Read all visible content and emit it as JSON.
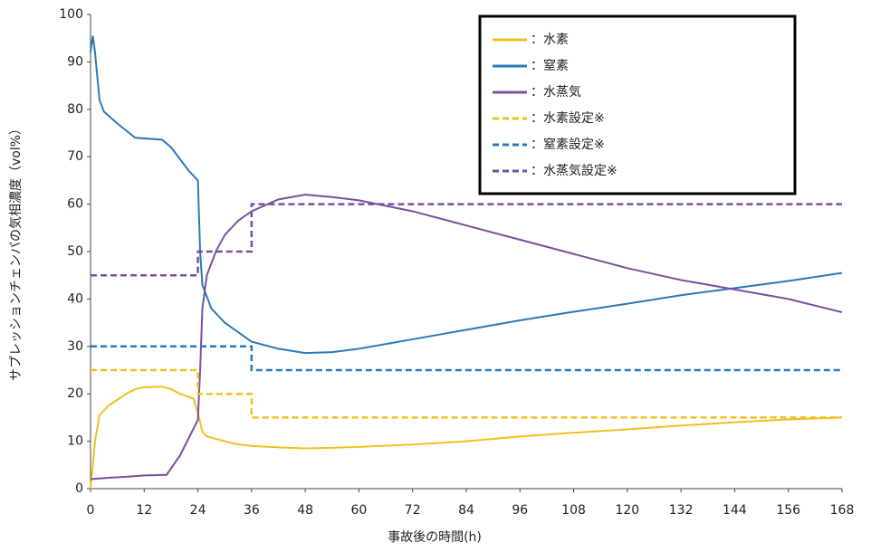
{
  "chart_data": {
    "type": "line",
    "xlabel": "事故後の時間(h)",
    "ylabel": "サプレッションチェンバの気相濃度（vol%）",
    "xlim": [
      0,
      168
    ],
    "xticks": [
      0,
      12,
      24,
      36,
      48,
      60,
      72,
      84,
      96,
      108,
      120,
      132,
      144,
      156,
      168
    ],
    "ylim": [
      0,
      100
    ],
    "yticks": [
      0,
      10,
      20,
      30,
      40,
      50,
      60,
      70,
      80,
      90,
      100
    ],
    "grid": false,
    "legend": "upper right",
    "series": [
      {
        "name": "：水素",
        "color": "#f0c020",
        "dash": false,
        "x": [
          0,
          1,
          2,
          4,
          8,
          10,
          12,
          16,
          18,
          20,
          23,
          24,
          25,
          26,
          28,
          32,
          36,
          42,
          48,
          54,
          60,
          72,
          84,
          96,
          108,
          120,
          132,
          144,
          156,
          168
        ],
        "values": [
          0,
          10,
          15.5,
          17.5,
          20,
          21,
          21.4,
          21.5,
          21,
          20,
          19,
          16,
          12,
          11,
          10.5,
          9.5,
          9,
          8.7,
          8.5,
          8.6,
          8.8,
          9.3,
          10,
          11,
          11.8,
          12.5,
          13.3,
          14,
          14.6,
          15
        ]
      },
      {
        "name": "：窒素",
        "color": "#2a7ab8",
        "dash": false,
        "x": [
          0,
          0.5,
          1,
          2,
          3,
          6,
          10,
          16,
          18,
          22,
          24,
          24.5,
          25,
          27,
          30,
          36,
          42,
          48,
          54,
          60,
          72,
          84,
          96,
          108,
          120,
          132,
          144,
          156,
          168
        ],
        "values": [
          92,
          95.5,
          92,
          82,
          79.5,
          77,
          74,
          73.6,
          72,
          67,
          65,
          50,
          43,
          38,
          35,
          31,
          29.5,
          28.6,
          28.8,
          29.5,
          31.5,
          33.5,
          35.5,
          37.3,
          39,
          40.8,
          42.3,
          43.8,
          45.5
        ]
      },
      {
        "name": "：水蒸気",
        "color": "#7a4fa0",
        "dash": false,
        "x": [
          0,
          4,
          8,
          12,
          17,
          20,
          24,
          24.5,
          25,
          26,
          28,
          30,
          33,
          36,
          42,
          48,
          54,
          60,
          72,
          84,
          96,
          108,
          120,
          132,
          144,
          156,
          168
        ],
        "values": [
          2,
          2.3,
          2.5,
          2.8,
          2.9,
          7,
          14.5,
          25,
          38,
          45,
          50,
          53.5,
          56.5,
          58.5,
          61,
          62,
          61.5,
          60.8,
          58.5,
          55.5,
          52.5,
          49.5,
          46.5,
          44,
          42,
          40,
          37.2
        ]
      },
      {
        "name": "：水素設定※",
        "color": "#f0c020",
        "dash": true,
        "x": [
          0,
          24,
          24,
          36,
          36,
          168
        ],
        "values": [
          25,
          25,
          20,
          20,
          15,
          15
        ]
      },
      {
        "name": "：窒素設定※",
        "color": "#2a7ab8",
        "dash": true,
        "x": [
          0,
          36,
          36,
          168
        ],
        "values": [
          30,
          30,
          25,
          25
        ]
      },
      {
        "name": "：水蒸気設定※",
        "color": "#7a4fa0",
        "dash": true,
        "x": [
          0,
          24,
          24,
          36,
          36,
          168
        ],
        "values": [
          45,
          45,
          50,
          50,
          60,
          60
        ]
      }
    ]
  }
}
